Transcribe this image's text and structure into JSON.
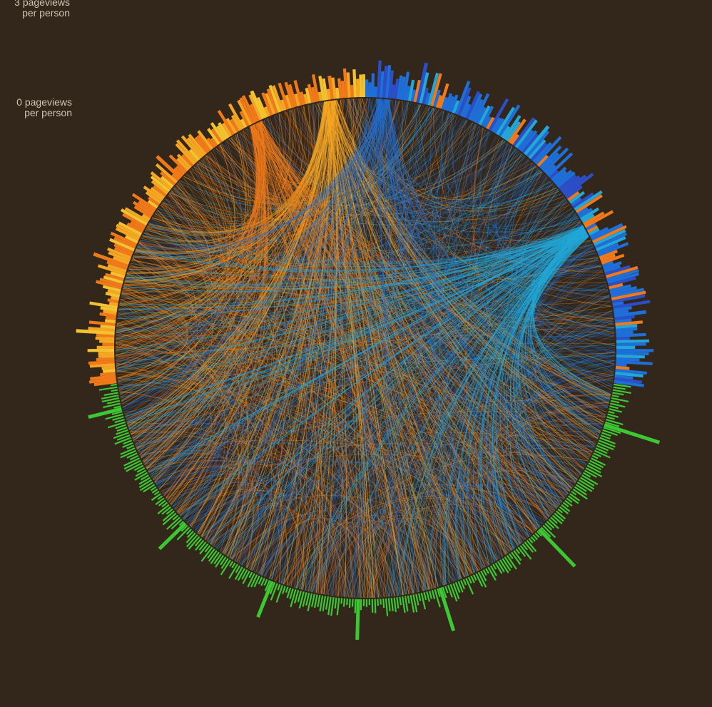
{
  "scale_labels": {
    "top": "3 pageviews\nper person",
    "zero": "0 pageviews\nper person"
  },
  "chart_data": {
    "type": "radial-bar-with-chords",
    "title": "",
    "value_unit": "pageviews per person",
    "value_range": [
      0,
      3
    ],
    "scale_ticks": [
      {
        "value": 3,
        "label": "3 pageviews per person"
      },
      {
        "value": 0,
        "label": "0 pageviews per person"
      }
    ],
    "colors": {
      "background": "#33261a",
      "orange": "#f07a1a",
      "amber": "#f5a623",
      "yellow": "#f2c230",
      "blue": "#1f6fd8",
      "cyan": "#22a8d8",
      "indigo": "#2b4fc8",
      "green": "#3cc832"
    },
    "segments": [
      {
        "group": "orange",
        "arc_deg": [
          -98,
          0
        ],
        "bar_count": 150,
        "typical_value": 0.55,
        "peak_values": [
          0.9,
          0.85,
          0.75,
          0.7,
          0.55
        ]
      },
      {
        "group": "blue",
        "arc_deg": [
          0,
          98
        ],
        "bar_count": 150,
        "typical_value": 0.7,
        "peak_values": [
          0.95,
          0.85,
          0.8,
          0.75
        ]
      },
      {
        "group": "green",
        "arc_deg": [
          98,
          262
        ],
        "bar_count": 260,
        "typical_value": 0.35,
        "peak_values": [
          1.35,
          1.2,
          1.05,
          0.95,
          0.9,
          0.85,
          0.8
        ]
      }
    ]
  }
}
